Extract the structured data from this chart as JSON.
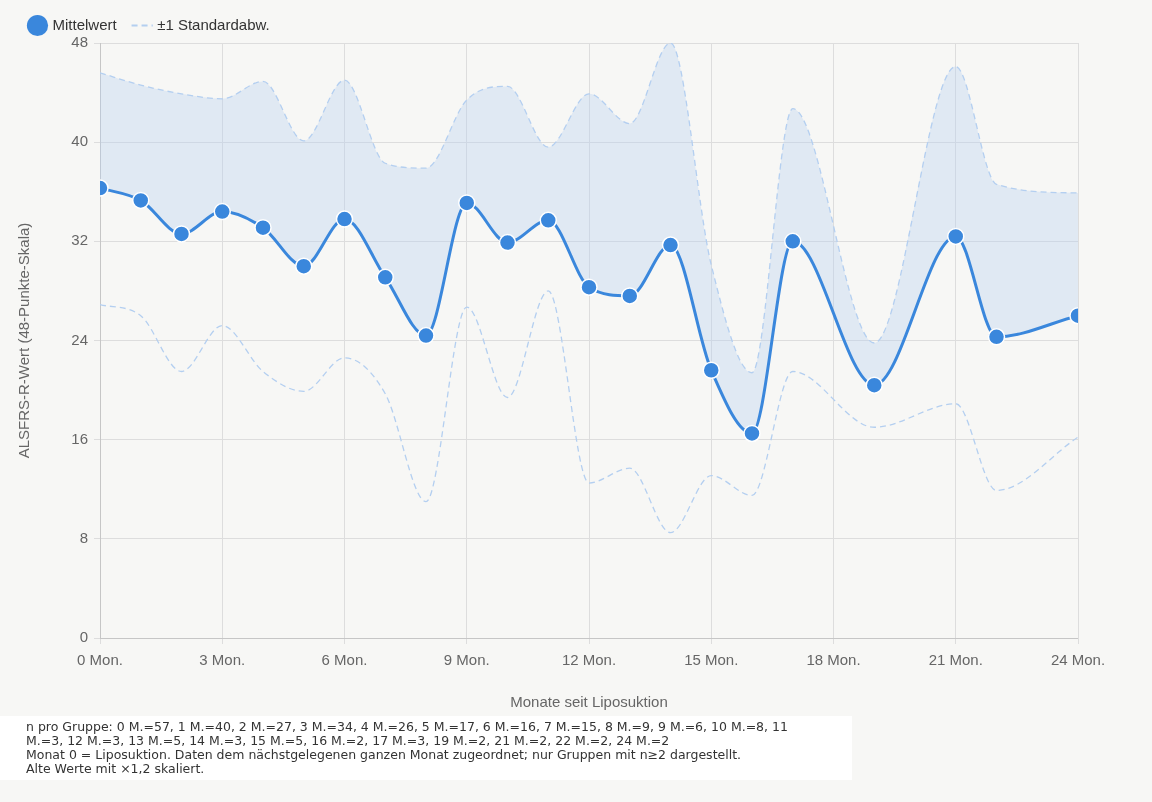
{
  "chart_data": {
    "type": "line",
    "xlabel": "Monate seit Liposuktion",
    "ylabel": "ALSFRS-R-Wert (48-Punkte-Skala)",
    "x": [
      0,
      1,
      2,
      3,
      4,
      5,
      6,
      7,
      8,
      9,
      10,
      11,
      12,
      13,
      14,
      15,
      16,
      17,
      19,
      21,
      22,
      24
    ],
    "series": [
      {
        "name": "Mittelwert",
        "color": "#3a87dc",
        "marker": "circle",
        "line_style": "solid",
        "values": [
          36.3,
          35.3,
          32.6,
          34.4,
          33.1,
          30.0,
          33.8,
          29.1,
          24.4,
          35.1,
          31.9,
          33.7,
          28.3,
          27.6,
          31.7,
          21.6,
          16.5,
          32.0,
          20.4,
          32.4,
          24.3,
          26.0
        ]
      },
      {
        "name": "±1 Standardabw.",
        "color": "#b4cff0",
        "marker": "none",
        "line_style": "dashed",
        "lower": [
          36.3,
          35.3,
          32.6,
          34.4,
          33.1,
          30.0,
          33.8,
          29.1,
          24.4,
          35.1,
          31.9,
          33.7,
          28.3,
          27.6,
          31.7,
          21.6,
          16.5,
          32.0,
          20.4,
          32.4,
          24.3,
          26.0
        ],
        "upper": [
          45.6,
          44.6,
          43.9,
          43.5,
          44.9,
          40.1,
          45.0,
          38.3,
          37.9,
          43.4,
          44.5,
          39.6,
          43.9,
          41.5,
          48.0,
          30.1,
          21.4,
          42.7,
          23.8,
          46.1,
          36.6,
          35.9
        ],
        "values": [
          45.6,
          44.6,
          43.9,
          43.5,
          44.9,
          40.1,
          45.0,
          38.3,
          37.9,
          43.4,
          44.5,
          39.6,
          43.9,
          41.5,
          48.0,
          30.1,
          21.4,
          42.7,
          23.8,
          46.1,
          36.6,
          35.9
        ]
      },
      {
        "color": "#b4cff0",
        "marker": "none",
        "line_style": "dashed",
        "values": [
          26.9,
          26.0,
          21.5,
          25.2,
          21.5,
          19.9,
          22.6,
          19.7,
          11.0,
          26.7,
          19.4,
          28.0,
          12.5,
          13.7,
          8.5,
          13.1,
          11.5,
          21.5,
          17.0,
          18.9,
          11.9,
          16.2
        ]
      }
    ],
    "xlim": [
      0,
      24
    ],
    "xticks": [
      {
        "value": 0,
        "label": "0 Mon."
      },
      {
        "value": 3,
        "label": "3 Mon."
      },
      {
        "value": 6,
        "label": "6 Mon."
      },
      {
        "value": 9,
        "label": "9 Mon."
      },
      {
        "value": 12,
        "label": "12 Mon."
      },
      {
        "value": 15,
        "label": "15 Mon."
      },
      {
        "value": 18,
        "label": "18 Mon."
      },
      {
        "value": 21,
        "label": "21 Mon."
      },
      {
        "value": 24,
        "label": "24 Mon."
      }
    ],
    "ylim": [
      0,
      48
    ],
    "yticks": [
      0,
      8,
      16,
      24,
      32,
      40,
      48
    ],
    "grid": true,
    "legend": "top left",
    "annotations": [
      "n pro Gruppe: 0 M.=57, 1 M.=40, 2 M.=27, 3 M.=34, 4 M.=26, 5 M.=17, 6 M.=16, 7 M.=15, 8 M.=9, 9 M.=6, 10 M.=8, 11 M.=3, 12 M.=3, 13 M.=5, 14 M.=3, 15 M.=5, 16 M.=2, 17 M.=3, 19 M.=2, 21 M.=2, 22 M.=2, 24 M.=2",
      "Monat 0 = Liposuktion. Daten dem nächstgelegenen ganzen Monat zugeordnet; nur Gruppen mit n≥2 dargestellt.",
      "Alte Werte mit ×1,2 skaliert."
    ]
  }
}
